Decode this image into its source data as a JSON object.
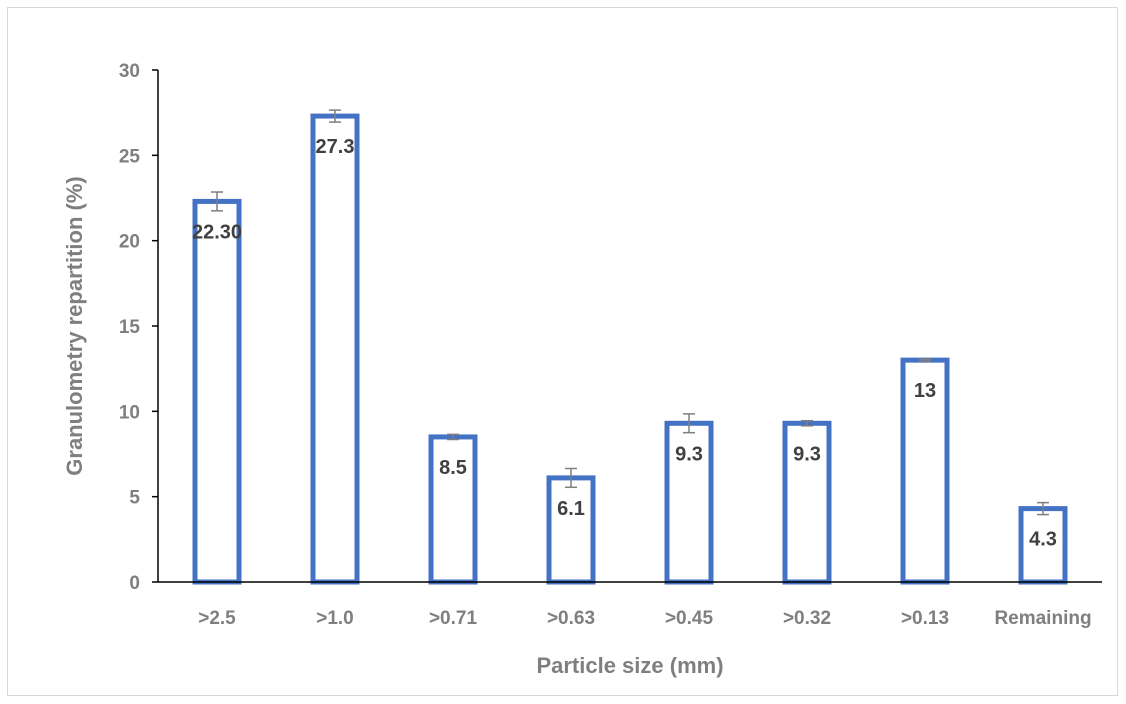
{
  "chart_data": {
    "type": "bar",
    "title": "",
    "xlabel": "Particle size (mm)",
    "ylabel": "Granulometry repartition (%)",
    "ylim": [
      0,
      30
    ],
    "yticks": [
      "0",
      "5",
      "10",
      "15",
      "20",
      "25",
      "30"
    ],
    "categories": [
      ">2.5",
      ">1.0",
      ">0.71",
      ">0.63",
      ">0.45",
      ">0.32",
      ">0.13",
      "Remaining"
    ],
    "values": [
      22.3,
      27.3,
      8.5,
      6.1,
      9.3,
      9.3,
      13.0,
      4.3
    ],
    "data_labels": [
      "22.30",
      "27.3",
      "8.5",
      "6.1",
      "9.3",
      "9.3",
      "13",
      "4.3"
    ],
    "error_bars": [
      0.55,
      0.35,
      0.15,
      0.55,
      0.55,
      0.15,
      0.05,
      0.35
    ],
    "grid": false,
    "bar_fill": "#ffffff",
    "bar_outline_color": "#4472c4",
    "axis_color": "#000000",
    "error_bar_color": "#7f7f7f"
  }
}
